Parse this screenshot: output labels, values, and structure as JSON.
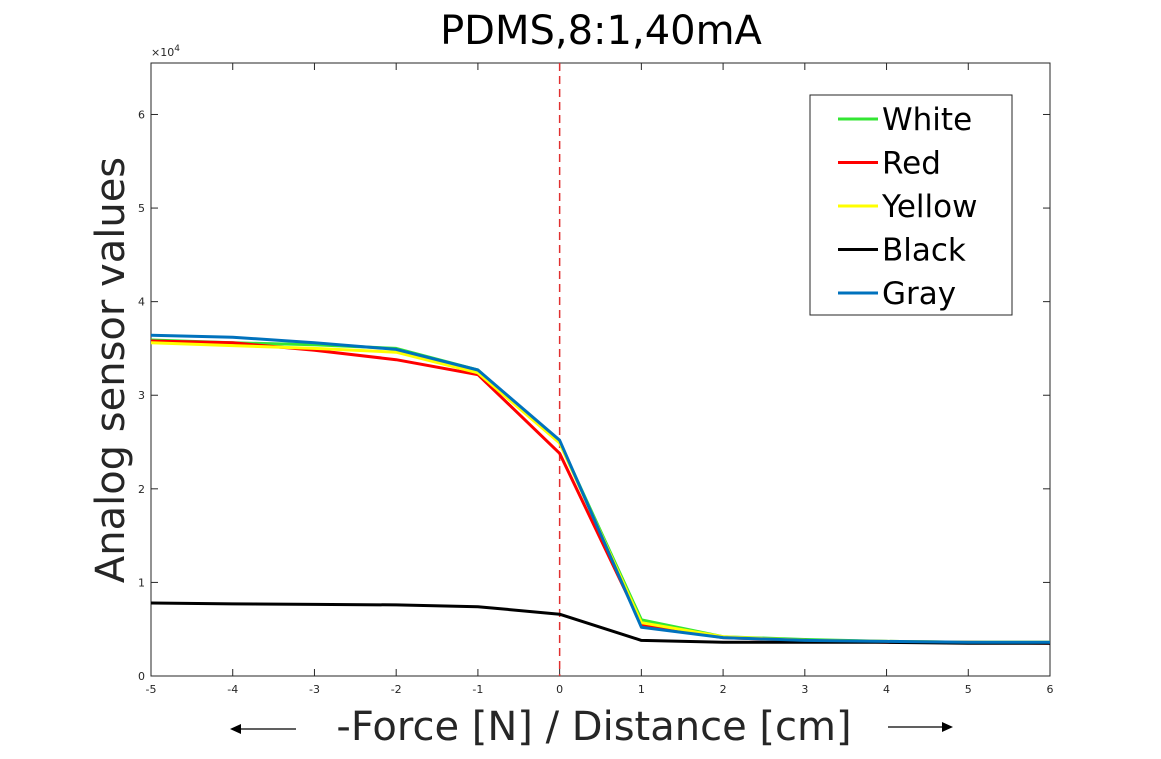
{
  "chart_data": {
    "type": "line",
    "title": "PDMS,8:1,40mA",
    "xlabel": "-Force [N] / Distance [cm]",
    "ylabel": "Analog sensor values",
    "y_exponent_label": "×10",
    "y_exponent_power": "4",
    "xlim": [
      -5,
      6
    ],
    "ylim": [
      0,
      65500
    ],
    "xticks": [
      -5,
      -4,
      -3,
      -2,
      -1,
      0,
      1,
      2,
      3,
      4,
      5,
      6
    ],
    "xtick_labels": [
      "-5",
      "-4",
      "-3",
      "-2",
      "-1",
      "0",
      "1",
      "2",
      "3",
      "4",
      "5",
      "6"
    ],
    "yticks": [
      0,
      10000,
      20000,
      30000,
      40000,
      50000,
      60000
    ],
    "ytick_labels": [
      "0",
      "1",
      "2",
      "3",
      "4",
      "5",
      "6"
    ],
    "grid": false,
    "legend_position": "top-right",
    "reference_line": {
      "x": 0,
      "style": "dashed",
      "color": "#e03030"
    },
    "x": [
      -5,
      -4,
      -3,
      -2,
      -1,
      0,
      1,
      2,
      3,
      4,
      5,
      6
    ],
    "series": [
      {
        "name": "White",
        "color": "#33e633",
        "values": [
          35900,
          35600,
          35400,
          35000,
          32700,
          25000,
          6000,
          4200,
          3900,
          3700,
          3600,
          3600
        ]
      },
      {
        "name": "Red",
        "color": "#ff0000",
        "values": [
          35800,
          35600,
          34800,
          33800,
          32200,
          23800,
          5500,
          4100,
          3800,
          3600,
          3600,
          3500
        ]
      },
      {
        "name": "Yellow",
        "color": "#ffff00",
        "values": [
          35600,
          35300,
          35000,
          34600,
          32400,
          24900,
          5700,
          4200,
          3800,
          3700,
          3600,
          3600
        ]
      },
      {
        "name": "Black",
        "color": "#000000",
        "values": [
          7800,
          7700,
          7650,
          7600,
          7400,
          6600,
          3800,
          3600,
          3600,
          3600,
          3500,
          3500
        ]
      },
      {
        "name": "Gray",
        "color": "#0072bd",
        "values": [
          36400,
          36200,
          35600,
          34900,
          32700,
          25200,
          5200,
          4100,
          3800,
          3700,
          3600,
          3600
        ]
      }
    ]
  }
}
